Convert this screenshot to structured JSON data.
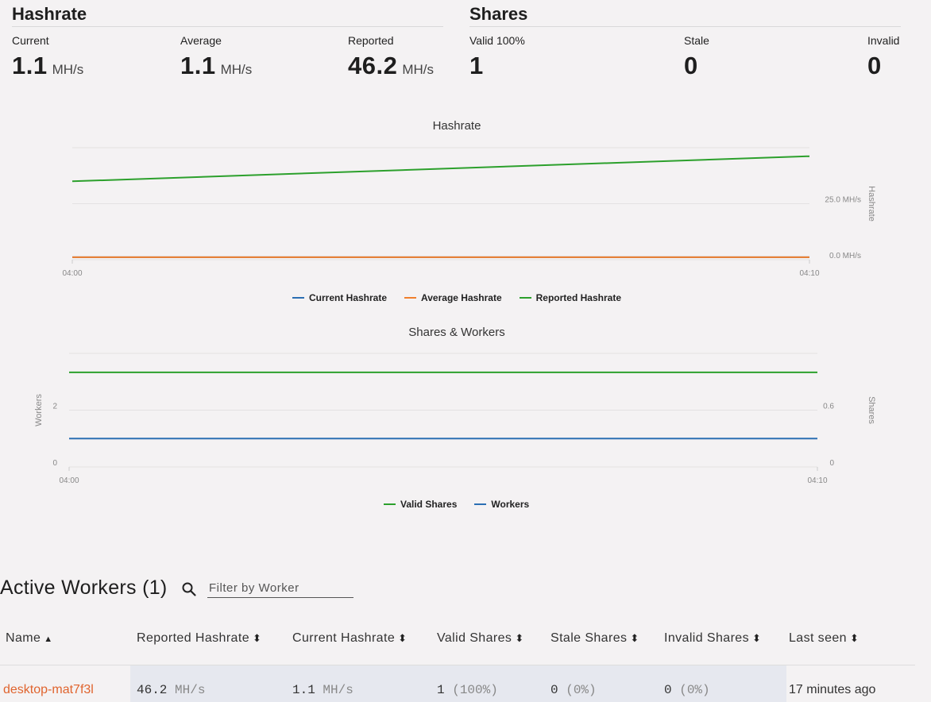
{
  "hashrate": {
    "title": "Hashrate",
    "current": {
      "label": "Current",
      "value": "1.1",
      "unit": "MH/s"
    },
    "average": {
      "label": "Average",
      "value": "1.1",
      "unit": "MH/s"
    },
    "reported": {
      "label": "Reported",
      "value": "46.2",
      "unit": "MH/s"
    }
  },
  "shares": {
    "title": "Shares",
    "valid": {
      "label": "Valid 100%",
      "value": "1"
    },
    "stale": {
      "label": "Stale",
      "value": "0"
    },
    "invalid": {
      "label": "Invalid",
      "value": "0"
    }
  },
  "chart_data": [
    {
      "type": "line",
      "title": "Hashrate",
      "x": [
        "04:00",
        "04:10"
      ],
      "y_axis_right": {
        "label": "Hashrate",
        "ticks": [
          "25.0 MH/s",
          "0.0 MH/s"
        ],
        "ylim": [
          0,
          50
        ]
      },
      "series": [
        {
          "name": "Current Hashrate",
          "color": "#2b6fb3",
          "values": [
            1.1,
            1.1
          ]
        },
        {
          "name": "Average Hashrate",
          "color": "#f07f2c",
          "values": [
            1.1,
            1.1
          ]
        },
        {
          "name": "Reported Hashrate",
          "color": "#2ca02c",
          "values": [
            35.0,
            46.2
          ]
        }
      ],
      "legend": "bottom",
      "grid": true
    },
    {
      "type": "line",
      "title": "Shares & Workers",
      "x": [
        "04:00",
        "04:10"
      ],
      "y_axis_left": {
        "label": "Workers",
        "ticks": [
          "2",
          "0"
        ],
        "ylim": [
          0,
          4
        ]
      },
      "y_axis_right": {
        "label": "Shares",
        "ticks": [
          "0.6",
          "0"
        ],
        "ylim": [
          0,
          1.2
        ]
      },
      "series": [
        {
          "name": "Valid Shares",
          "color": "#2ca02c",
          "axis": "right",
          "values": [
            1,
            1
          ]
        },
        {
          "name": "Workers",
          "color": "#2b6fb3",
          "axis": "left",
          "values": [
            1,
            1
          ]
        }
      ],
      "legend": "bottom",
      "grid": true
    }
  ],
  "workers": {
    "title": "Active Workers (1)",
    "filter_placeholder": "Filter by Worker",
    "columns": [
      "Name",
      "Reported Hashrate",
      "Current Hashrate",
      "Valid Shares",
      "Stale Shares",
      "Invalid Shares",
      "Last seen"
    ],
    "rows": [
      {
        "name": "desktop-mat7f3l",
        "reported": "46.2",
        "reported_unit": "MH/s",
        "current": "1.1",
        "current_unit": "MH/s",
        "valid": "1",
        "valid_pct": "(100%)",
        "stale": "0",
        "stale_pct": "(0%)",
        "invalid": "0",
        "invalid_pct": "(0%)",
        "last_seen": "17 minutes ago"
      }
    ]
  }
}
